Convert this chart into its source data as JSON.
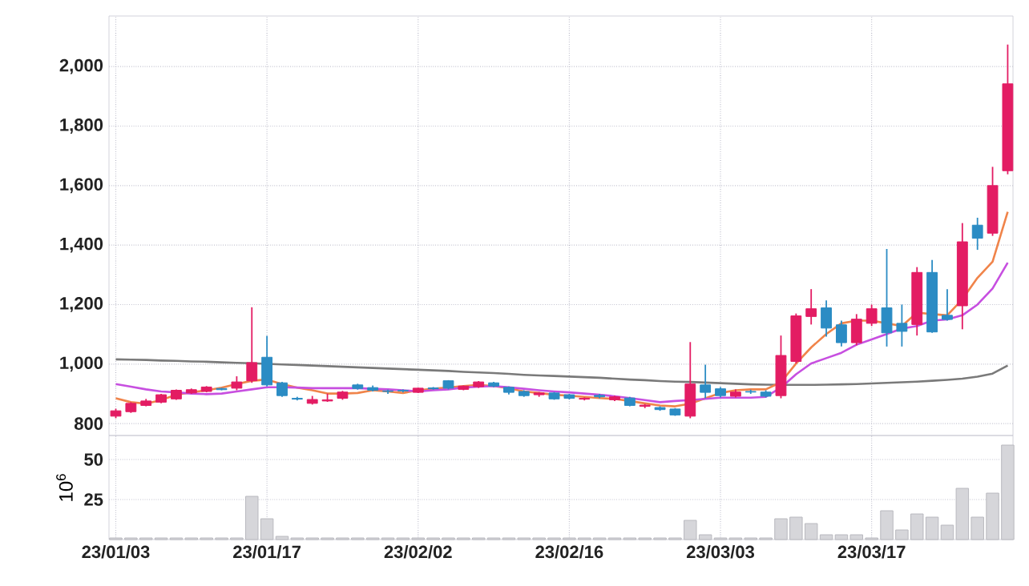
{
  "chart_data": [
    {
      "type": "candlestick",
      "categories": [
        null,
        null,
        null,
        null,
        null,
        null,
        null,
        null,
        null,
        null,
        null,
        null,
        null,
        null,
        null,
        null,
        null,
        null,
        null,
        null,
        null,
        null,
        null,
        null,
        null,
        null,
        null,
        null,
        null,
        null,
        null,
        null,
        null,
        null,
        null,
        null,
        null,
        null,
        null,
        null,
        null,
        null,
        null,
        null,
        null,
        null,
        null,
        null,
        null,
        null,
        null,
        null,
        null,
        null,
        null,
        null,
        null,
        null,
        null,
        null
      ],
      "ohlc": [
        [
          825,
          850,
          818,
          843
        ],
        [
          840,
          872,
          836,
          868
        ],
        [
          861,
          883,
          858,
          876
        ],
        [
          872,
          900,
          868,
          897
        ],
        [
          883,
          915,
          880,
          912
        ],
        [
          903,
          918,
          900,
          914
        ],
        [
          908,
          926,
          905,
          923
        ],
        [
          918,
          920,
          912,
          914
        ],
        [
          919,
          959,
          912,
          940
        ],
        [
          944,
          1191,
          937,
          1005
        ],
        [
          1023,
          1095,
          925,
          930
        ],
        [
          937,
          940,
          890,
          894
        ],
        [
          885,
          890,
          878,
          882
        ],
        [
          868,
          893,
          864,
          881
        ],
        [
          876,
          901,
          873,
          880
        ],
        [
          885,
          910,
          880,
          906
        ],
        [
          930,
          934,
          914,
          918
        ],
        [
          921,
          928,
          908,
          912
        ],
        [
          910,
          914,
          900,
          908
        ],
        [
          912,
          915,
          905,
          910
        ],
        [
          905,
          921,
          903,
          919
        ],
        [
          920,
          923,
          914,
          917
        ],
        [
          944,
          946,
          915,
          919
        ],
        [
          915,
          928,
          912,
          926
        ],
        [
          924,
          943,
          920,
          940
        ],
        [
          937,
          940,
          922,
          926
        ],
        [
          922,
          925,
          898,
          905
        ],
        [
          908,
          912,
          890,
          894
        ],
        [
          897,
          906,
          890,
          903
        ],
        [
          903,
          906,
          880,
          883
        ],
        [
          897,
          900,
          881,
          885
        ],
        [
          882,
          888,
          878,
          885
        ],
        [
          895,
          900,
          885,
          890
        ],
        [
          880,
          894,
          876,
          890
        ],
        [
          886,
          890,
          858,
          861
        ],
        [
          858,
          866,
          852,
          862
        ],
        [
          854,
          858,
          843,
          847
        ],
        [
          849,
          852,
          826,
          829
        ],
        [
          825,
          1074,
          818,
          933
        ],
        [
          930,
          998,
          885,
          905
        ],
        [
          917,
          923,
          888,
          894
        ],
        [
          892,
          915,
          888,
          906
        ],
        [
          908,
          914,
          900,
          906
        ],
        [
          906,
          912,
          888,
          892
        ],
        [
          894,
          1096,
          885,
          1029
        ],
        [
          1009,
          1170,
          1002,
          1162
        ],
        [
          1160,
          1252,
          1133,
          1186
        ],
        [
          1189,
          1214,
          1092,
          1121
        ],
        [
          1132,
          1146,
          1059,
          1072
        ],
        [
          1072,
          1168,
          1063,
          1151
        ],
        [
          1137,
          1200,
          1128,
          1186
        ],
        [
          1189,
          1387,
          1059,
          1105
        ],
        [
          1137,
          1200,
          1059,
          1110
        ],
        [
          1133,
          1326,
          1096,
          1308
        ],
        [
          1308,
          1350,
          1105,
          1108
        ],
        [
          1164,
          1252,
          1146,
          1150
        ],
        [
          1196,
          1474,
          1117,
          1411
        ],
        [
          1467,
          1492,
          1384,
          1423
        ],
        [
          1440,
          1663,
          1431,
          1600
        ],
        [
          1650,
          2074,
          1638,
          1942
        ]
      ],
      "colors": [
        "#e31c63",
        "#e31c63",
        "#e31c63",
        "#e31c63",
        "#e31c63",
        "#e31c63",
        "#e31c63",
        "#2b8cc4",
        "#e31c63",
        "#e31c63",
        "#2b8cc4",
        "#2b8cc4",
        "#2b8cc4",
        "#e31c63",
        "#e31c63",
        "#e31c63",
        "#2b8cc4",
        "#2b8cc4",
        "#2b8cc4",
        "#2b8cc4",
        "#e31c63",
        "#2b8cc4",
        "#2b8cc4",
        "#e31c63",
        "#e31c63",
        "#2b8cc4",
        "#2b8cc4",
        "#2b8cc4",
        "#e31c63",
        "#2b8cc4",
        "#2b8cc4",
        "#e31c63",
        "#2b8cc4",
        "#e31c63",
        "#2b8cc4",
        "#e31c63",
        "#2b8cc4",
        "#2b8cc4",
        "#e31c63",
        "#2b8cc4",
        "#2b8cc4",
        "#e31c63",
        "#2b8cc4",
        "#2b8cc4",
        "#e31c63",
        "#e31c63",
        "#e31c63",
        "#2b8cc4",
        "#2b8cc4",
        "#e31c63",
        "#e31c63",
        "#2b8cc4",
        "#2b8cc4",
        "#e31c63",
        "#2b8cc4",
        "#2b8cc4",
        "#e31c63",
        "#2b8cc4",
        "#e31c63",
        "#e31c63"
      ],
      "series": [
        {
          "type": "line",
          "color": "#7a7a7a",
          "values": [
            1016,
            1015,
            1014,
            1012,
            1011,
            1009,
            1008,
            1006,
            1004,
            1003,
            1001,
            999,
            997,
            995,
            993,
            991,
            989,
            987,
            985,
            983,
            981,
            979,
            977,
            974,
            972,
            970,
            967,
            964,
            962,
            960,
            958,
            956,
            954,
            951,
            948,
            946,
            943,
            941,
            940,
            938,
            936,
            934,
            932,
            931,
            930,
            930,
            930,
            931,
            932,
            933,
            935,
            937,
            939,
            941,
            944,
            947,
            951,
            958,
            968,
            995
          ]
        },
        {
          "type": "line",
          "color": "#f0844a",
          "values": [
            885,
            872,
            867,
            879,
            897,
            905,
            912,
            921,
            933,
            944,
            948,
            933,
            921,
            912,
            901,
            901,
            903,
            912,
            908,
            903,
            912,
            917,
            921,
            926,
            930,
            926,
            919,
            908,
            903,
            897,
            894,
            890,
            886,
            883,
            876,
            868,
            861,
            858,
            867,
            885,
            903,
            912,
            915,
            915,
            939,
            1002,
            1056,
            1101,
            1137,
            1146,
            1146,
            1137,
            1128,
            1173,
            1168,
            1164,
            1218,
            1290,
            1344,
            1512
          ]
        },
        {
          "type": "line",
          "color": "#c74fe0",
          "values": [
            933,
            924,
            915,
            908,
            905,
            901,
            899,
            901,
            908,
            915,
            922,
            922,
            921,
            919,
            919,
            919,
            919,
            917,
            915,
            912,
            908,
            912,
            915,
            921,
            924,
            926,
            922,
            917,
            912,
            908,
            905,
            901,
            897,
            892,
            886,
            879,
            872,
            876,
            879,
            883,
            887,
            887,
            887,
            890,
            921,
            966,
            1002,
            1020,
            1038,
            1065,
            1083,
            1101,
            1119,
            1128,
            1146,
            1150,
            1164,
            1200,
            1254,
            1341
          ]
        }
      ],
      "ylim": [
        760,
        2170
      ],
      "yticks": [
        {
          "value": 800,
          "label": "800"
        },
        {
          "value": 1000,
          "label": "1,000"
        },
        {
          "value": 1200,
          "label": "1,200"
        },
        {
          "value": 1400,
          "label": "1,400"
        },
        {
          "value": 1600,
          "label": "1,600"
        },
        {
          "value": 1800,
          "label": "1,800"
        },
        {
          "value": 2000,
          "label": "2,000"
        }
      ],
      "grid": true,
      "tick_labels": "y"
    },
    {
      "type": "bar",
      "categories": [
        "23/01/03",
        null,
        null,
        null,
        null,
        null,
        null,
        null,
        null,
        null,
        "23/01/17",
        null,
        null,
        null,
        null,
        null,
        null,
        null,
        null,
        null,
        "23/02/02",
        null,
        null,
        null,
        null,
        null,
        null,
        null,
        null,
        null,
        "23/02/16",
        null,
        null,
        null,
        null,
        null,
        null,
        null,
        null,
        null,
        "23/03/03",
        null,
        null,
        null,
        null,
        null,
        null,
        null,
        null,
        null,
        "23/03/17",
        null,
        null,
        null,
        null,
        null,
        null,
        null,
        null,
        null
      ],
      "values": [
        1,
        1,
        1,
        1,
        1,
        1,
        1,
        1,
        1,
        27,
        13,
        2,
        1,
        1,
        1,
        1,
        1,
        1,
        1,
        1,
        1,
        1,
        1,
        1,
        1,
        1,
        1,
        1,
        1,
        1,
        1,
        1,
        1,
        1,
        1,
        1,
        1,
        1,
        12,
        3,
        1,
        1,
        1,
        1,
        13,
        14,
        10,
        3,
        3,
        3,
        1,
        18,
        6,
        16,
        14,
        9,
        32,
        14,
        29,
        59
      ],
      "color": "#d6d6da",
      "ylabel": "10$^{6}$",
      "ylim": [
        0,
        65
      ],
      "yticks": [
        25,
        50
      ],
      "grid": true
    }
  ]
}
